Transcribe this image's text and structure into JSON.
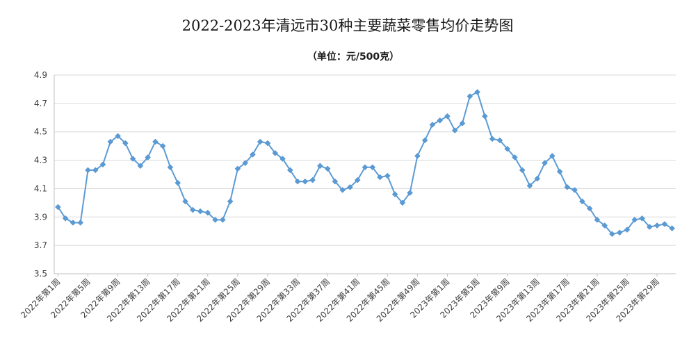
{
  "chart_data": {
    "type": "line",
    "title": "2022-2023年清远市30种主要蔬菜零售均价走势图",
    "subtitle": "（单位：元/500克）",
    "ylim": [
      3.5,
      4.9
    ],
    "yticks": [
      "3.5",
      "3.7",
      "3.9",
      "4.1",
      "4.3",
      "4.5",
      "4.7",
      "4.9"
    ],
    "grid": true,
    "legend": "none",
    "line_color": "#5b9bd5",
    "x_tick_labels": [
      "2022年第1周",
      "2022年第5周",
      "2022年第9周",
      "2022年第13周",
      "2022年第17周",
      "2022年第21周",
      "2022年第25周",
      "2022年第29周",
      "2022年第33周",
      "2022年第37周",
      "2022年第41周",
      "2022年第45周",
      "2022年第49周",
      "2023年第1周",
      "2023年第5周",
      "2023年第9周",
      "2023年第13周",
      "2023年第17周",
      "2023年第21周",
      "2023年第25周",
      "2023年第29周"
    ],
    "label_every": 4,
    "values": [
      3.97,
      3.89,
      3.86,
      3.86,
      4.23,
      4.23,
      4.27,
      4.43,
      4.47,
      4.42,
      4.31,
      4.26,
      4.32,
      4.43,
      4.4,
      4.25,
      4.14,
      4.01,
      3.95,
      3.94,
      3.93,
      3.88,
      3.88,
      4.01,
      4.24,
      4.28,
      4.34,
      4.43,
      4.42,
      4.35,
      4.31,
      4.23,
      4.15,
      4.15,
      4.16,
      4.26,
      4.24,
      4.15,
      4.09,
      4.11,
      4.16,
      4.25,
      4.25,
      4.18,
      4.19,
      4.06,
      4.0,
      4.07,
      4.33,
      4.44,
      4.55,
      4.58,
      4.61,
      4.51,
      4.56,
      4.75,
      4.78,
      4.61,
      4.45,
      4.44,
      4.38,
      4.32,
      4.23,
      4.12,
      4.17,
      4.28,
      4.33,
      4.22,
      4.11,
      4.09,
      4.01,
      3.96,
      3.88,
      3.84,
      3.78,
      3.79,
      3.81,
      3.88,
      3.89,
      3.83,
      3.84,
      3.85,
      3.82
    ]
  }
}
